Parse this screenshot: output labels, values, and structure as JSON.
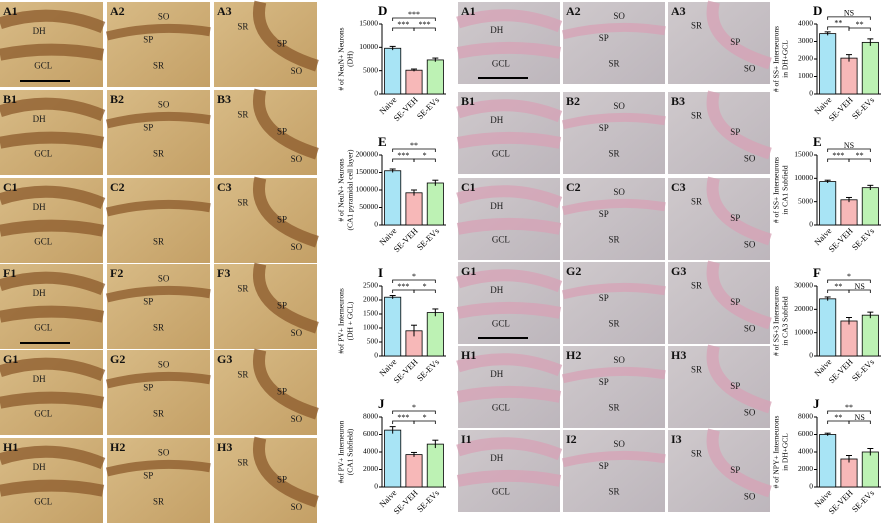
{
  "left_micrographs": {
    "rows": [
      {
        "panels": [
          {
            "id": "A1",
            "labels": [
              "DH",
              "GCL"
            ]
          },
          {
            "id": "A2",
            "labels": [
              "SO",
              "SP",
              "SR"
            ]
          },
          {
            "id": "A3",
            "labels": [
              "SR",
              "SP",
              "SO"
            ]
          }
        ]
      },
      {
        "panels": [
          {
            "id": "B1",
            "labels": [
              "DH",
              "GCL"
            ]
          },
          {
            "id": "B2",
            "labels": [
              "SO",
              "SP",
              "SR"
            ]
          },
          {
            "id": "B3",
            "labels": [
              "SR",
              "SP",
              "SO"
            ]
          }
        ]
      },
      {
        "panels": [
          {
            "id": "C1",
            "labels": [
              "DH",
              "GCL"
            ]
          },
          {
            "id": "C2",
            "labels": [
              "SR"
            ]
          },
          {
            "id": "C3",
            "labels": [
              "SR",
              "SP",
              "SO"
            ]
          }
        ]
      },
      {
        "panels": [
          {
            "id": "F1",
            "labels": [
              "DH",
              "GCL"
            ]
          },
          {
            "id": "F2",
            "labels": [
              "SO",
              "SP",
              "SR"
            ]
          },
          {
            "id": "F3",
            "labels": [
              "SR",
              "SP",
              "SO"
            ]
          }
        ]
      },
      {
        "panels": [
          {
            "id": "G1",
            "labels": [
              "DH",
              "GCL"
            ]
          },
          {
            "id": "G2",
            "labels": [
              "SO",
              "SP",
              "SR"
            ]
          },
          {
            "id": "G3",
            "labels": [
              "SR",
              "SP",
              "SO"
            ]
          }
        ]
      },
      {
        "panels": [
          {
            "id": "H1",
            "labels": [
              "DH",
              "GCL"
            ]
          },
          {
            "id": "H2",
            "labels": [
              "SO",
              "SP",
              "SR"
            ]
          },
          {
            "id": "H3",
            "labels": [
              "SR",
              "SP",
              "SO"
            ]
          }
        ]
      }
    ]
  },
  "right_micrographs": {
    "rows": [
      {
        "panels": [
          {
            "id": "A1",
            "labels": [
              "DH",
              "GCL"
            ]
          },
          {
            "id": "A2",
            "labels": [
              "SO",
              "SP",
              "SR"
            ]
          },
          {
            "id": "A3",
            "labels": [
              "SR",
              "SP",
              "SO"
            ]
          }
        ]
      },
      {
        "panels": [
          {
            "id": "B1",
            "labels": [
              "DH",
              "GCL"
            ]
          },
          {
            "id": "B2",
            "labels": [
              "SO",
              "SP",
              "SR"
            ]
          },
          {
            "id": "B3",
            "labels": [
              "SR",
              "SP",
              "SO"
            ]
          }
        ]
      },
      {
        "panels": [
          {
            "id": "C1",
            "labels": [
              "DH",
              "GCL"
            ]
          },
          {
            "id": "C2",
            "labels": [
              "SO",
              "SP",
              "SR"
            ]
          },
          {
            "id": "C3",
            "labels": [
              "SR",
              "SP",
              "SO"
            ]
          }
        ]
      },
      {
        "panels": [
          {
            "id": "G1",
            "labels": [
              "DH",
              "GCL"
            ]
          },
          {
            "id": "G2",
            "labels": [
              "SP",
              "SR"
            ]
          },
          {
            "id": "G3",
            "labels": [
              "SR",
              "SP",
              "SO"
            ]
          }
        ]
      },
      {
        "panels": [
          {
            "id": "H1",
            "labels": [
              "DH",
              "GCL"
            ]
          },
          {
            "id": "H2",
            "labels": [
              "SO",
              "SP",
              "SR"
            ]
          },
          {
            "id": "H3",
            "labels": [
              "SR",
              "SP",
              "SO"
            ]
          }
        ]
      },
      {
        "panels": [
          {
            "id": "I1",
            "labels": [
              "DH",
              "GCL"
            ]
          },
          {
            "id": "I2",
            "labels": [
              "SO",
              "SP",
              "SR"
            ]
          },
          {
            "id": "I3",
            "labels": [
              "SO",
              "SR",
              "SP"
            ]
          }
        ]
      }
    ]
  },
  "chart_data": [
    {
      "type": "bar",
      "panel": "D",
      "ylabel": [
        "# of NeuN+ Neurons",
        "(DH)"
      ],
      "categories": [
        "Naive",
        "SE-VEH",
        "SE-EVs"
      ],
      "values": [
        9800,
        5100,
        7300
      ],
      "errors": [
        400,
        250,
        400
      ],
      "colors": [
        "#a8e4f5",
        "#f7b8b8",
        "#bdf2b4"
      ],
      "ylim": [
        0,
        15000
      ],
      "yticks": [
        0,
        5000,
        10000,
        15000
      ],
      "comparisons": [
        {
          "from": "Naive",
          "to": "SE-VEH",
          "label": "***"
        },
        {
          "from": "SE-VEH",
          "to": "SE-EVs",
          "label": "***"
        },
        {
          "from": "Naive",
          "to": "SE-EVs",
          "label": "***"
        }
      ]
    },
    {
      "type": "bar",
      "panel": "E",
      "ylabel": [
        "# of NeuN+ Neurons",
        "(CA1 pyramidal cell layer)"
      ],
      "categories": [
        "Naive",
        "SE-VEH",
        "SE-EVs"
      ],
      "values": [
        155000,
        92000,
        120000
      ],
      "errors": [
        5000,
        8000,
        8000
      ],
      "colors": [
        "#a8e4f5",
        "#f7b8b8",
        "#bdf2b4"
      ],
      "ylim": [
        0,
        200000
      ],
      "yticks": [
        0,
        50000,
        100000,
        150000,
        200000
      ],
      "comparisons": [
        {
          "from": "Naive",
          "to": "SE-VEH",
          "label": "***"
        },
        {
          "from": "SE-VEH",
          "to": "SE-EVs",
          "label": "*"
        },
        {
          "from": "Naive",
          "to": "SE-EVs",
          "label": "**"
        }
      ]
    },
    {
      "type": "bar",
      "panel": "I",
      "ylabel": [
        "#of PV+ Interneurons",
        "(DH + GCL)"
      ],
      "categories": [
        "Naive",
        "SE-VEH",
        "SE-EVs"
      ],
      "values": [
        2100,
        900,
        1550
      ],
      "errors": [
        60,
        200,
        130
      ],
      "colors": [
        "#a8e4f5",
        "#f7b8b8",
        "#bdf2b4"
      ],
      "ylim": [
        0,
        2500
      ],
      "yticks": [
        0,
        500,
        1000,
        1500,
        2000,
        2500
      ],
      "comparisons": [
        {
          "from": "Naive",
          "to": "SE-VEH",
          "label": "***"
        },
        {
          "from": "SE-VEH",
          "to": "SE-EVs",
          "label": "*"
        },
        {
          "from": "Naive",
          "to": "SE-EVs",
          "label": "*"
        }
      ]
    },
    {
      "type": "bar",
      "panel": "J",
      "ylabel": [
        "#of PV+ Interneuron",
        "(CA1 Subfield)"
      ],
      "categories": [
        "Naive",
        "SE-VEH",
        "SE-EVs"
      ],
      "values": [
        6500,
        3700,
        4900
      ],
      "errors": [
        400,
        250,
        450
      ],
      "colors": [
        "#a8e4f5",
        "#f7b8b8",
        "#bdf2b4"
      ],
      "ylim": [
        0,
        8000
      ],
      "yticks": [
        0,
        2000,
        4000,
        6000,
        8000
      ],
      "comparisons": [
        {
          "from": "Naive",
          "to": "SE-VEH",
          "label": "***"
        },
        {
          "from": "SE-VEH",
          "to": "SE-EVs",
          "label": "*"
        },
        {
          "from": "Naive",
          "to": "SE-EVs",
          "label": "*"
        }
      ]
    },
    {
      "type": "bar",
      "panel": "D",
      "ylabel": [
        "# of SS+ Interneurons",
        "in DH+GCL"
      ],
      "categories": [
        "Naive",
        "SE-VEH",
        "SE-EVs"
      ],
      "values": [
        3450,
        2050,
        2950
      ],
      "errors": [
        100,
        200,
        200
      ],
      "colors": [
        "#a8e4f5",
        "#f7b8b8",
        "#bdf2b4"
      ],
      "ylim": [
        0,
        4000
      ],
      "yticks": [
        0,
        1000,
        2000,
        3000,
        4000
      ],
      "comparisons": [
        {
          "from": "Naive",
          "to": "SE-VEH",
          "label": "**"
        },
        {
          "from": "SE-VEH",
          "to": "SE-EVs",
          "label": "**"
        },
        {
          "from": "Naive",
          "to": "SE-EVs",
          "label": "NS"
        }
      ]
    },
    {
      "type": "bar",
      "panel": "E",
      "ylabel": [
        "# of SS+ Interneurons",
        "in CA1 Subfield"
      ],
      "categories": [
        "Naive",
        "SE-VEH",
        "SE-EVs"
      ],
      "values": [
        9300,
        5400,
        8000
      ],
      "errors": [
        300,
        500,
        500
      ],
      "colors": [
        "#a8e4f5",
        "#f7b8b8",
        "#bdf2b4"
      ],
      "ylim": [
        0,
        15000
      ],
      "yticks": [
        0,
        5000,
        10000,
        15000
      ],
      "comparisons": [
        {
          "from": "Naive",
          "to": "SE-VEH",
          "label": "***"
        },
        {
          "from": "SE-VEH",
          "to": "SE-EVs",
          "label": "**"
        },
        {
          "from": "Naive",
          "to": "SE-EVs",
          "label": "NS"
        }
      ]
    },
    {
      "type": "bar",
      "panel": "F",
      "ylabel": [
        "# of SS+3 Interneurons",
        "in CA3 Subfield"
      ],
      "categories": [
        "Naive",
        "SE-VEH",
        "SE-EVs"
      ],
      "values": [
        24500,
        15000,
        17500
      ],
      "errors": [
        800,
        1500,
        1300
      ],
      "colors": [
        "#a8e4f5",
        "#f7b8b8",
        "#bdf2b4"
      ],
      "ylim": [
        0,
        30000
      ],
      "yticks": [
        0,
        10000,
        20000,
        30000
      ],
      "comparisons": [
        {
          "from": "Naive",
          "to": "SE-VEH",
          "label": "**"
        },
        {
          "from": "SE-VEH",
          "to": "SE-EVs",
          "label": "NS"
        },
        {
          "from": "Naive",
          "to": "SE-EVs",
          "label": "*"
        }
      ]
    },
    {
      "type": "bar",
      "panel": "J",
      "ylabel": [
        "# of NPY+ Interneurons",
        "in DH+GCL"
      ],
      "categories": [
        "Naive",
        "SE-VEH",
        "SE-EVs"
      ],
      "values": [
        6000,
        3200,
        4000
      ],
      "errors": [
        150,
        400,
        400
      ],
      "colors": [
        "#a8e4f5",
        "#f7b8b8",
        "#bdf2b4"
      ],
      "ylim": [
        0,
        8000
      ],
      "yticks": [
        0,
        2000,
        4000,
        6000,
        8000
      ],
      "comparisons": [
        {
          "from": "Naive",
          "to": "SE-VEH",
          "label": "**"
        },
        {
          "from": "SE-VEH",
          "to": "SE-EVs",
          "label": "NS"
        },
        {
          "from": "Naive",
          "to": "SE-EVs",
          "label": "**"
        }
      ]
    }
  ]
}
